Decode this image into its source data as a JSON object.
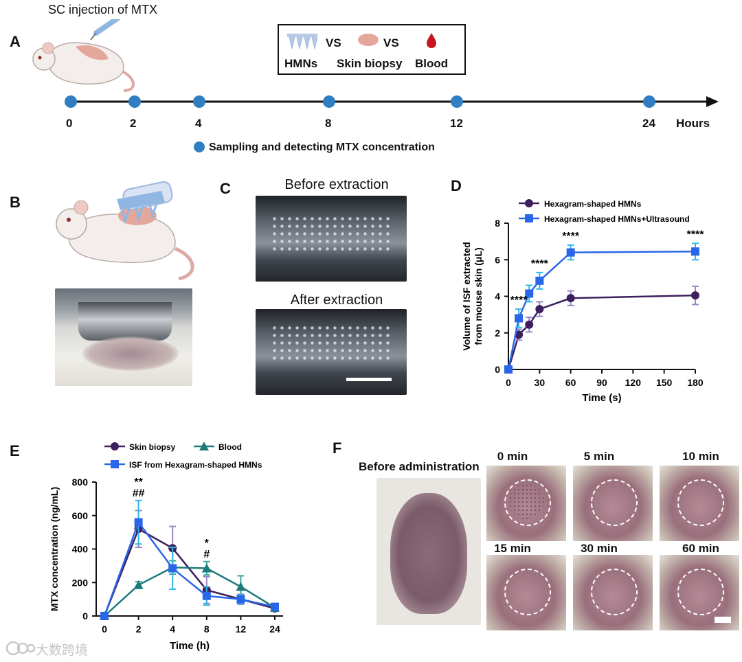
{
  "panel_labels": {
    "a": "A",
    "b": "B",
    "c": "C",
    "d": "D",
    "e": "E",
    "f": "F"
  },
  "panelA": {
    "title": "SC injection of MTX",
    "legend": {
      "vs1": "VS",
      "vs2": "VS",
      "hmns": "HMNs",
      "skin": "Skin biopsy",
      "blood": "Blood"
    },
    "timepoints": [
      "0",
      "2",
      "4",
      "8",
      "12",
      "24"
    ],
    "unit": "Hours",
    "note": "Sampling and detecting MTX concentration"
  },
  "panelC": {
    "before": "Before extraction",
    "after": "After extraction"
  },
  "panelF": {
    "before": "Before administration",
    "times": [
      "0 min",
      "5 min",
      "10 min",
      "15 min",
      "30 min",
      "60 min"
    ]
  },
  "watermark": "大数跨境",
  "colors": {
    "dark_purple": "#3c1f5c",
    "blue": "#2a66e8",
    "teal": "#1f7a7a",
    "timeline_dot": "#2f7fc2",
    "err_purple": "#9a86c4",
    "err_blue": "#2fb8e8",
    "err_teal": "#3aa89a"
  },
  "chart_data": [
    {
      "type": "line",
      "id": "D",
      "xlabel": "Time (s)",
      "ylabel": "Volume of ISF extracted from mouse skin (μL)",
      "xlim": [
        0,
        180
      ],
      "ylim": [
        0,
        8
      ],
      "xticks": [
        0,
        30,
        60,
        90,
        120,
        150,
        180
      ],
      "yticks": [
        0,
        2,
        4,
        6,
        8
      ],
      "series": [
        {
          "name": "Hexagram-shaped HMNs",
          "marker": "circle",
          "color": "#3c1f5c",
          "x": [
            0,
            10,
            20,
            30,
            60,
            180
          ],
          "y": [
            0,
            1.9,
            2.45,
            3.3,
            3.9,
            4.05
          ],
          "err": [
            0,
            0.3,
            0.4,
            0.4,
            0.4,
            0.5
          ]
        },
        {
          "name": "Hexagram-shaped HMNs+Ultrasound",
          "marker": "square",
          "color": "#2a66e8",
          "x": [
            0,
            10,
            20,
            30,
            60,
            180
          ],
          "y": [
            0,
            2.8,
            4.15,
            4.85,
            6.4,
            6.45
          ],
          "err": [
            0,
            0.5,
            0.45,
            0.45,
            0.4,
            0.45
          ]
        }
      ],
      "annotations": [
        {
          "x": 10,
          "text": "****"
        },
        {
          "x": 30,
          "text": "****"
        },
        {
          "x": 60,
          "text": "****"
        },
        {
          "x": 180,
          "text": "****"
        }
      ]
    },
    {
      "type": "line",
      "id": "E",
      "xlabel": "Time (h)",
      "ylabel": "MTX concentration (ng/mL)",
      "ylim": [
        0,
        800
      ],
      "categories": [
        "0",
        "2",
        "4",
        "8",
        "12",
        "24"
      ],
      "yticks": [
        0,
        200,
        400,
        600,
        800
      ],
      "series": [
        {
          "name": "Skin biopsy",
          "marker": "circle",
          "color": "#3c1f5c",
          "values": [
            0,
            520,
            405,
            155,
            100,
            45
          ],
          "err": [
            0,
            110,
            130,
            80,
            30,
            10
          ]
        },
        {
          "name": "Blood",
          "marker": "triangle",
          "color": "#1f7a7a",
          "values": [
            0,
            185,
            290,
            285,
            175,
            50
          ],
          "err": [
            0,
            20,
            40,
            40,
            65,
            10
          ]
        },
        {
          "name": "ISF from Hexagram-shaped HMNs",
          "marker": "square",
          "color": "#2a66e8",
          "values": [
            0,
            560,
            285,
            120,
            100,
            55
          ],
          "err": [
            0,
            130,
            125,
            55,
            25,
            10
          ]
        }
      ],
      "annotations": [
        {
          "cat": 1,
          "lines": [
            "**",
            "##"
          ]
        },
        {
          "cat": 3,
          "lines": [
            "*",
            "#"
          ]
        }
      ]
    }
  ]
}
